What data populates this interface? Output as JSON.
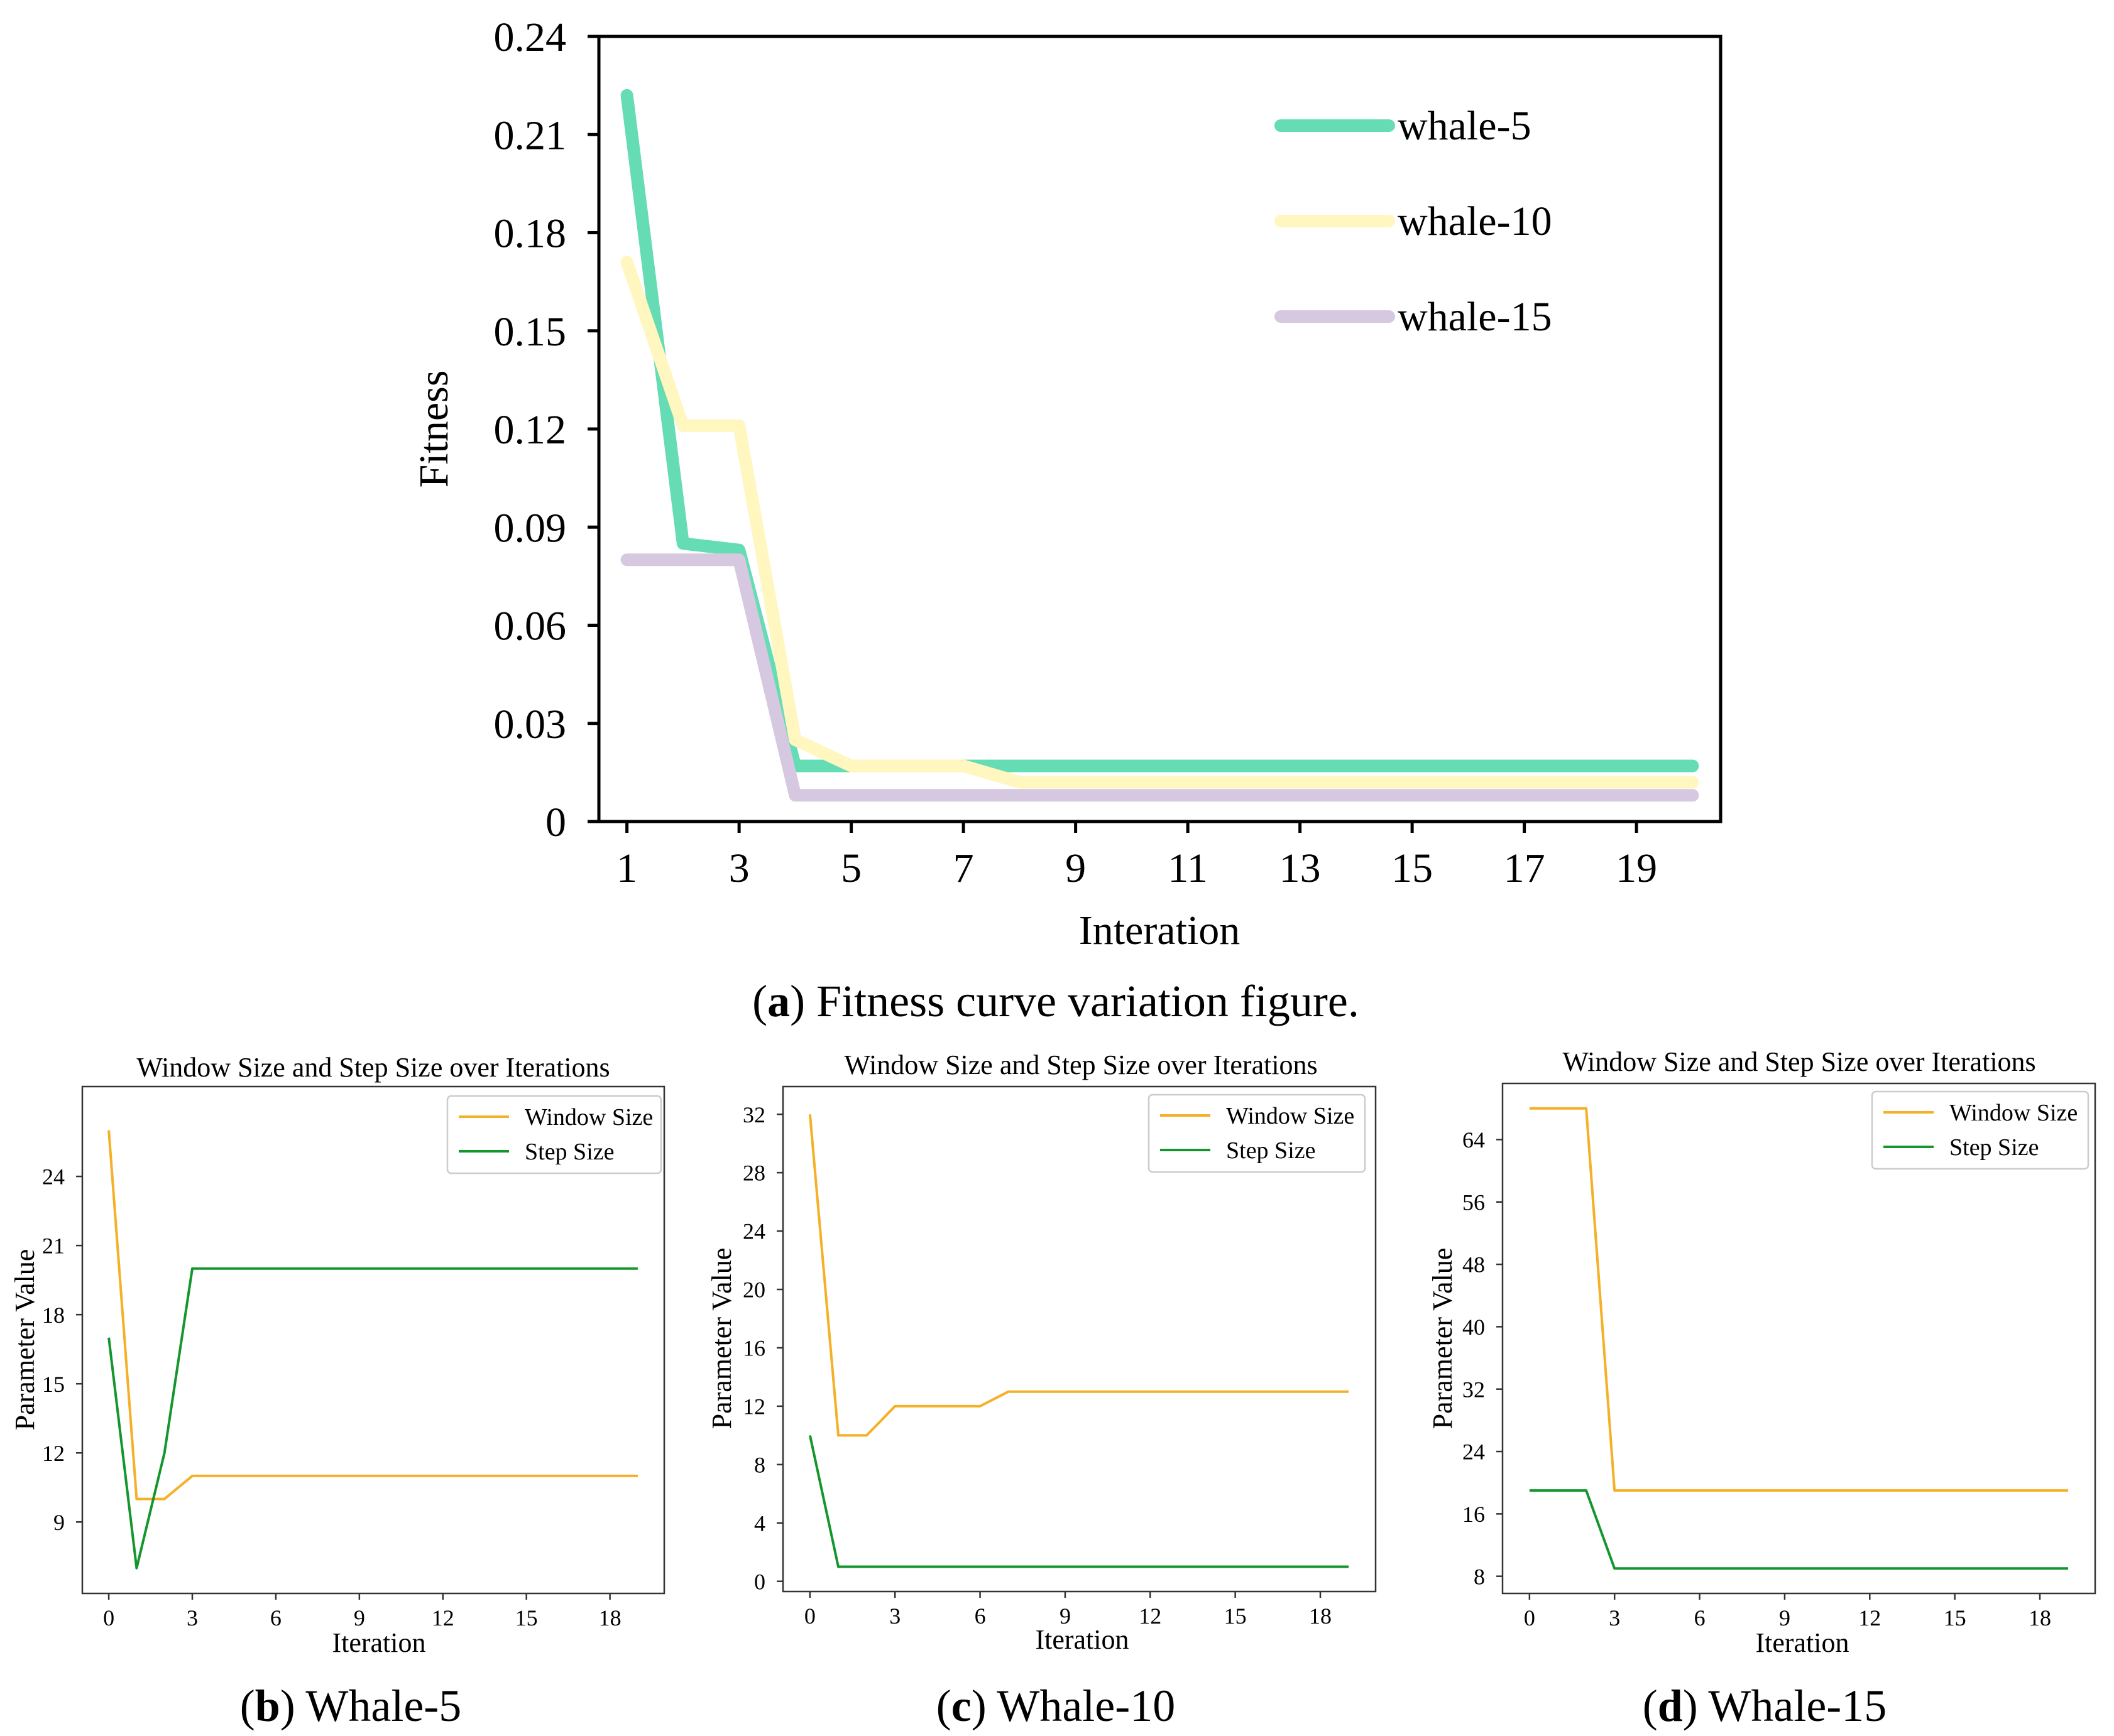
{
  "charts": [
    {
      "id": "a",
      "caption": {
        "label": "a",
        "text": "Fitness curve variation figure.",
        "open": "(",
        "close": ")"
      },
      "chart_data": {
        "type": "line",
        "title": "",
        "xlabel": "Interation",
        "ylabel": "Fitness",
        "xlim": [
          0.5,
          20.5
        ],
        "ylim": [
          0,
          0.24
        ],
        "xticks": [
          1,
          3,
          5,
          7,
          9,
          11,
          13,
          15,
          17,
          19
        ],
        "yticks": [
          0,
          0.03,
          0.06,
          0.09,
          0.12,
          0.15,
          0.18,
          0.21,
          0.24
        ],
        "ytick_labels": [
          "0",
          "0.03",
          "0.06",
          "0.09",
          "0.12",
          "0.15",
          "0.18",
          "0.21",
          "0.24"
        ],
        "legend_position": "top-right",
        "series": [
          {
            "name": "whale-5",
            "color": "#66dcb4",
            "points": [
              [
                1,
                0.222
              ],
              [
                2,
                0.085
              ],
              [
                3,
                0.083
              ],
              [
                4,
                0.017
              ],
              [
                5,
                0.017
              ],
              [
                6,
                0.017
              ],
              [
                7,
                0.017
              ],
              [
                8,
                0.017
              ],
              [
                9,
                0.017
              ],
              [
                10,
                0.017
              ],
              [
                11,
                0.017
              ],
              [
                12,
                0.017
              ],
              [
                13,
                0.017
              ],
              [
                14,
                0.017
              ],
              [
                15,
                0.017
              ],
              [
                16,
                0.017
              ],
              [
                17,
                0.017
              ],
              [
                18,
                0.017
              ],
              [
                19,
                0.017
              ],
              [
                20,
                0.017
              ]
            ]
          },
          {
            "name": "whale-10",
            "color": "#fff6c0",
            "points": [
              [
                1,
                0.171
              ],
              [
                2,
                0.121
              ],
              [
                3,
                0.121
              ],
              [
                4,
                0.025
              ],
              [
                5,
                0.017
              ],
              [
                6,
                0.017
              ],
              [
                7,
                0.017
              ],
              [
                8,
                0.012
              ],
              [
                9,
                0.012
              ],
              [
                10,
                0.012
              ],
              [
                11,
                0.012
              ],
              [
                12,
                0.012
              ],
              [
                13,
                0.012
              ],
              [
                14,
                0.012
              ],
              [
                15,
                0.012
              ],
              [
                16,
                0.012
              ],
              [
                17,
                0.012
              ],
              [
                18,
                0.012
              ],
              [
                19,
                0.012
              ],
              [
                20,
                0.012
              ]
            ]
          },
          {
            "name": "whale-15",
            "color": "#d5c8e0",
            "points": [
              [
                1,
                0.08
              ],
              [
                2,
                0.08
              ],
              [
                3,
                0.08
              ],
              [
                4,
                0.008
              ],
              [
                5,
                0.008
              ],
              [
                6,
                0.008
              ],
              [
                7,
                0.008
              ],
              [
                8,
                0.008
              ],
              [
                9,
                0.008
              ],
              [
                10,
                0.008
              ],
              [
                11,
                0.008
              ],
              [
                12,
                0.008
              ],
              [
                13,
                0.008
              ],
              [
                14,
                0.008
              ],
              [
                15,
                0.008
              ],
              [
                16,
                0.008
              ],
              [
                17,
                0.008
              ],
              [
                18,
                0.008
              ],
              [
                19,
                0.008
              ],
              [
                20,
                0.008
              ]
            ]
          }
        ]
      }
    },
    {
      "id": "b",
      "caption": {
        "label": "b",
        "text": "Whale-5",
        "open": "(",
        "close": ")"
      },
      "chart_data": {
        "type": "line",
        "title": "Window Size and Step Size over Iterations",
        "xlabel": "Iteration",
        "ylabel": "Parameter Value",
        "xlim": [
          -0.95,
          19.95
        ],
        "ylim": [
          5.9,
          27.9
        ],
        "xticks": [
          0,
          3,
          6,
          9,
          12,
          15,
          18
        ],
        "yticks": [
          9,
          12,
          15,
          18,
          21,
          24
        ],
        "legend_position": "top-right",
        "series": [
          {
            "name": "Window Size",
            "color": "#f5b027",
            "values": [
              26,
              10,
              10,
              11,
              11,
              11,
              11,
              11,
              11,
              11,
              11,
              11,
              11,
              11,
              11,
              11,
              11,
              11,
              11,
              11
            ]
          },
          {
            "name": "Step Size",
            "color": "#14962e",
            "values": [
              17,
              7,
              12,
              20,
              20,
              20,
              20,
              20,
              20,
              20,
              20,
              20,
              20,
              20,
              20,
              20,
              20,
              20,
              20,
              20
            ]
          }
        ]
      }
    },
    {
      "id": "c",
      "caption": {
        "label": "c",
        "text": "Whale-10",
        "open": "(",
        "close": ")"
      },
      "chart_data": {
        "type": "line",
        "title": "Window Size and Step Size over Iterations",
        "xlabel": "Iteration",
        "ylabel": "Parameter Value",
        "xlim": [
          -0.95,
          19.95
        ],
        "ylim": [
          -0.7,
          33.9
        ],
        "xticks": [
          0,
          3,
          6,
          9,
          12,
          15,
          18
        ],
        "yticks": [
          0,
          4,
          8,
          12,
          16,
          20,
          24,
          28,
          32
        ],
        "legend_position": "top-right",
        "series": [
          {
            "name": "Window Size",
            "color": "#f5b027",
            "values": [
              32,
              10,
              10,
              12,
              12,
              12,
              12,
              13,
              13,
              13,
              13,
              13,
              13,
              13,
              13,
              13,
              13,
              13,
              13,
              13
            ]
          },
          {
            "name": "Step Size",
            "color": "#14962e",
            "values": [
              10,
              1,
              1,
              1,
              1,
              1,
              1,
              1,
              1,
              1,
              1,
              1,
              1,
              1,
              1,
              1,
              1,
              1,
              1,
              1
            ]
          }
        ]
      }
    },
    {
      "id": "d",
      "caption": {
        "label": "d",
        "text": "Whale-15",
        "open": "(",
        "close": ")"
      },
      "chart_data": {
        "type": "line",
        "title": "Window Size and Step Size over Iterations",
        "xlabel": "Iteration",
        "ylabel": "Parameter Value",
        "xlim": [
          -0.95,
          19.95
        ],
        "ylim": [
          5.8,
          71.2
        ],
        "xticks": [
          0,
          3,
          6,
          9,
          12,
          15,
          18
        ],
        "yticks": [
          8,
          16,
          24,
          32,
          40,
          48,
          56,
          64
        ],
        "legend_position": "top-right",
        "series": [
          {
            "name": "Window Size",
            "color": "#f5b027",
            "values": [
              68,
              68,
              68,
              19,
              19,
              19,
              19,
              19,
              19,
              19,
              19,
              19,
              19,
              19,
              19,
              19,
              19,
              19,
              19,
              19
            ]
          },
          {
            "name": "Step Size",
            "color": "#14962e",
            "values": [
              19,
              19,
              19,
              9,
              9,
              9,
              9,
              9,
              9,
              9,
              9,
              9,
              9,
              9,
              9,
              9,
              9,
              9,
              9,
              9
            ]
          }
        ]
      }
    }
  ]
}
